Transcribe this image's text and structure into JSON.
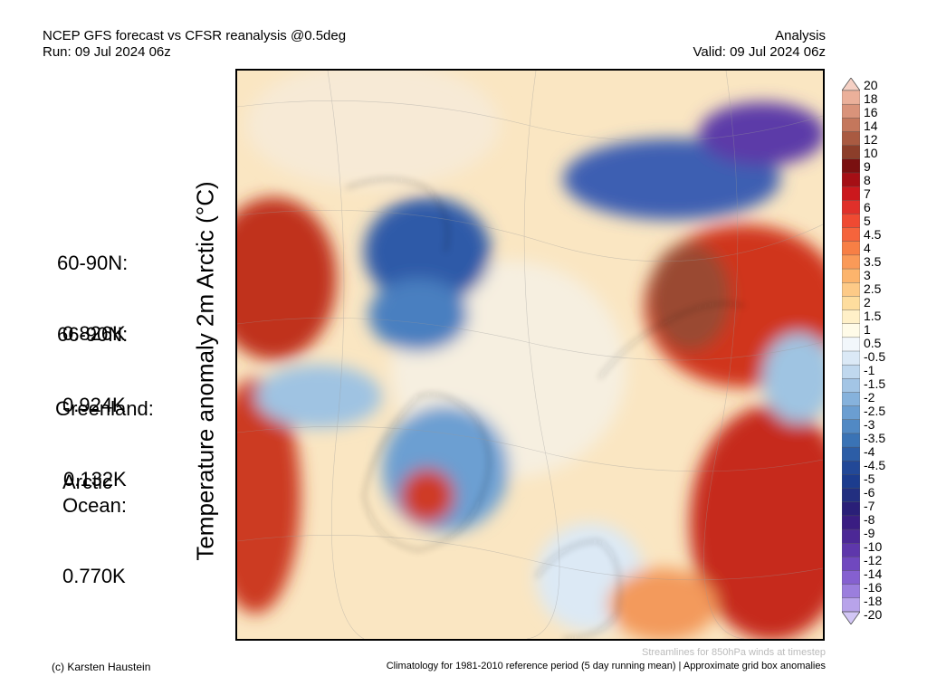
{
  "header": {
    "title": "NCEP GFS forecast vs CFSR reanalysis @0.5deg",
    "run": "Run: 09 Jul 2024 06z",
    "mode": "Analysis",
    "valid": "Valid: 09 Jul 2024 06z"
  },
  "vertical_title": "Temperature anomaly 2m Arctic (°C)",
  "stats": [
    {
      "label": "60-90N:",
      "value": "0.826K"
    },
    {
      "label": "66-90N:",
      "value": "0.924K"
    },
    {
      "label": "Greenland:",
      "value": "0.132K"
    },
    {
      "label": "Arctic\nOcean:",
      "value": "0.770K"
    }
  ],
  "colorbar": {
    "labels": [
      "20",
      "18",
      "16",
      "14",
      "12",
      "10",
      "9",
      "8",
      "7",
      "6",
      "5",
      "4.5",
      "4",
      "3.5",
      "3",
      "2.5",
      "2",
      "1.5",
      "1",
      "0.5",
      "-0.5",
      "-1",
      "-1.5",
      "-2",
      "-2.5",
      "-3",
      "-3.5",
      "-4",
      "-4.5",
      "-5",
      "-6",
      "-7",
      "-8",
      "-9",
      "-10",
      "-12",
      "-14",
      "-16",
      "-18",
      "-20"
    ],
    "colors": [
      "#f5d0c4",
      "#ebb09a",
      "#d9937a",
      "#c4775c",
      "#a95a41",
      "#8c3e2a",
      "#7a1010",
      "#a50f15",
      "#cb181d",
      "#e0302a",
      "#ef4a32",
      "#f5643c",
      "#f77f45",
      "#fa9a58",
      "#fcb46c",
      "#fdca87",
      "#fedd9e",
      "#fff0c8",
      "#fffbe8",
      "#f2f7fb",
      "#dbe9f6",
      "#c0d8ee",
      "#a3c5e5",
      "#86b2dc",
      "#6b9ed1",
      "#5189c4",
      "#3a73b5",
      "#2c5da6",
      "#224897",
      "#1c3c8e",
      "#222f80",
      "#2a1f78",
      "#3a1d82",
      "#4c2896",
      "#5e37ab",
      "#7048bf",
      "#8560d0",
      "#9b7edd",
      "#b8a3ea",
      "#d2c6f5"
    ]
  },
  "footer": {
    "credit": "(c) Karsten Haustein",
    "note": "Streamlines for 850hPa winds at timestep",
    "climatology": "Climatology for 1981-2010 reference period (5 day running mean) | Approximate grid box anomalies"
  }
}
